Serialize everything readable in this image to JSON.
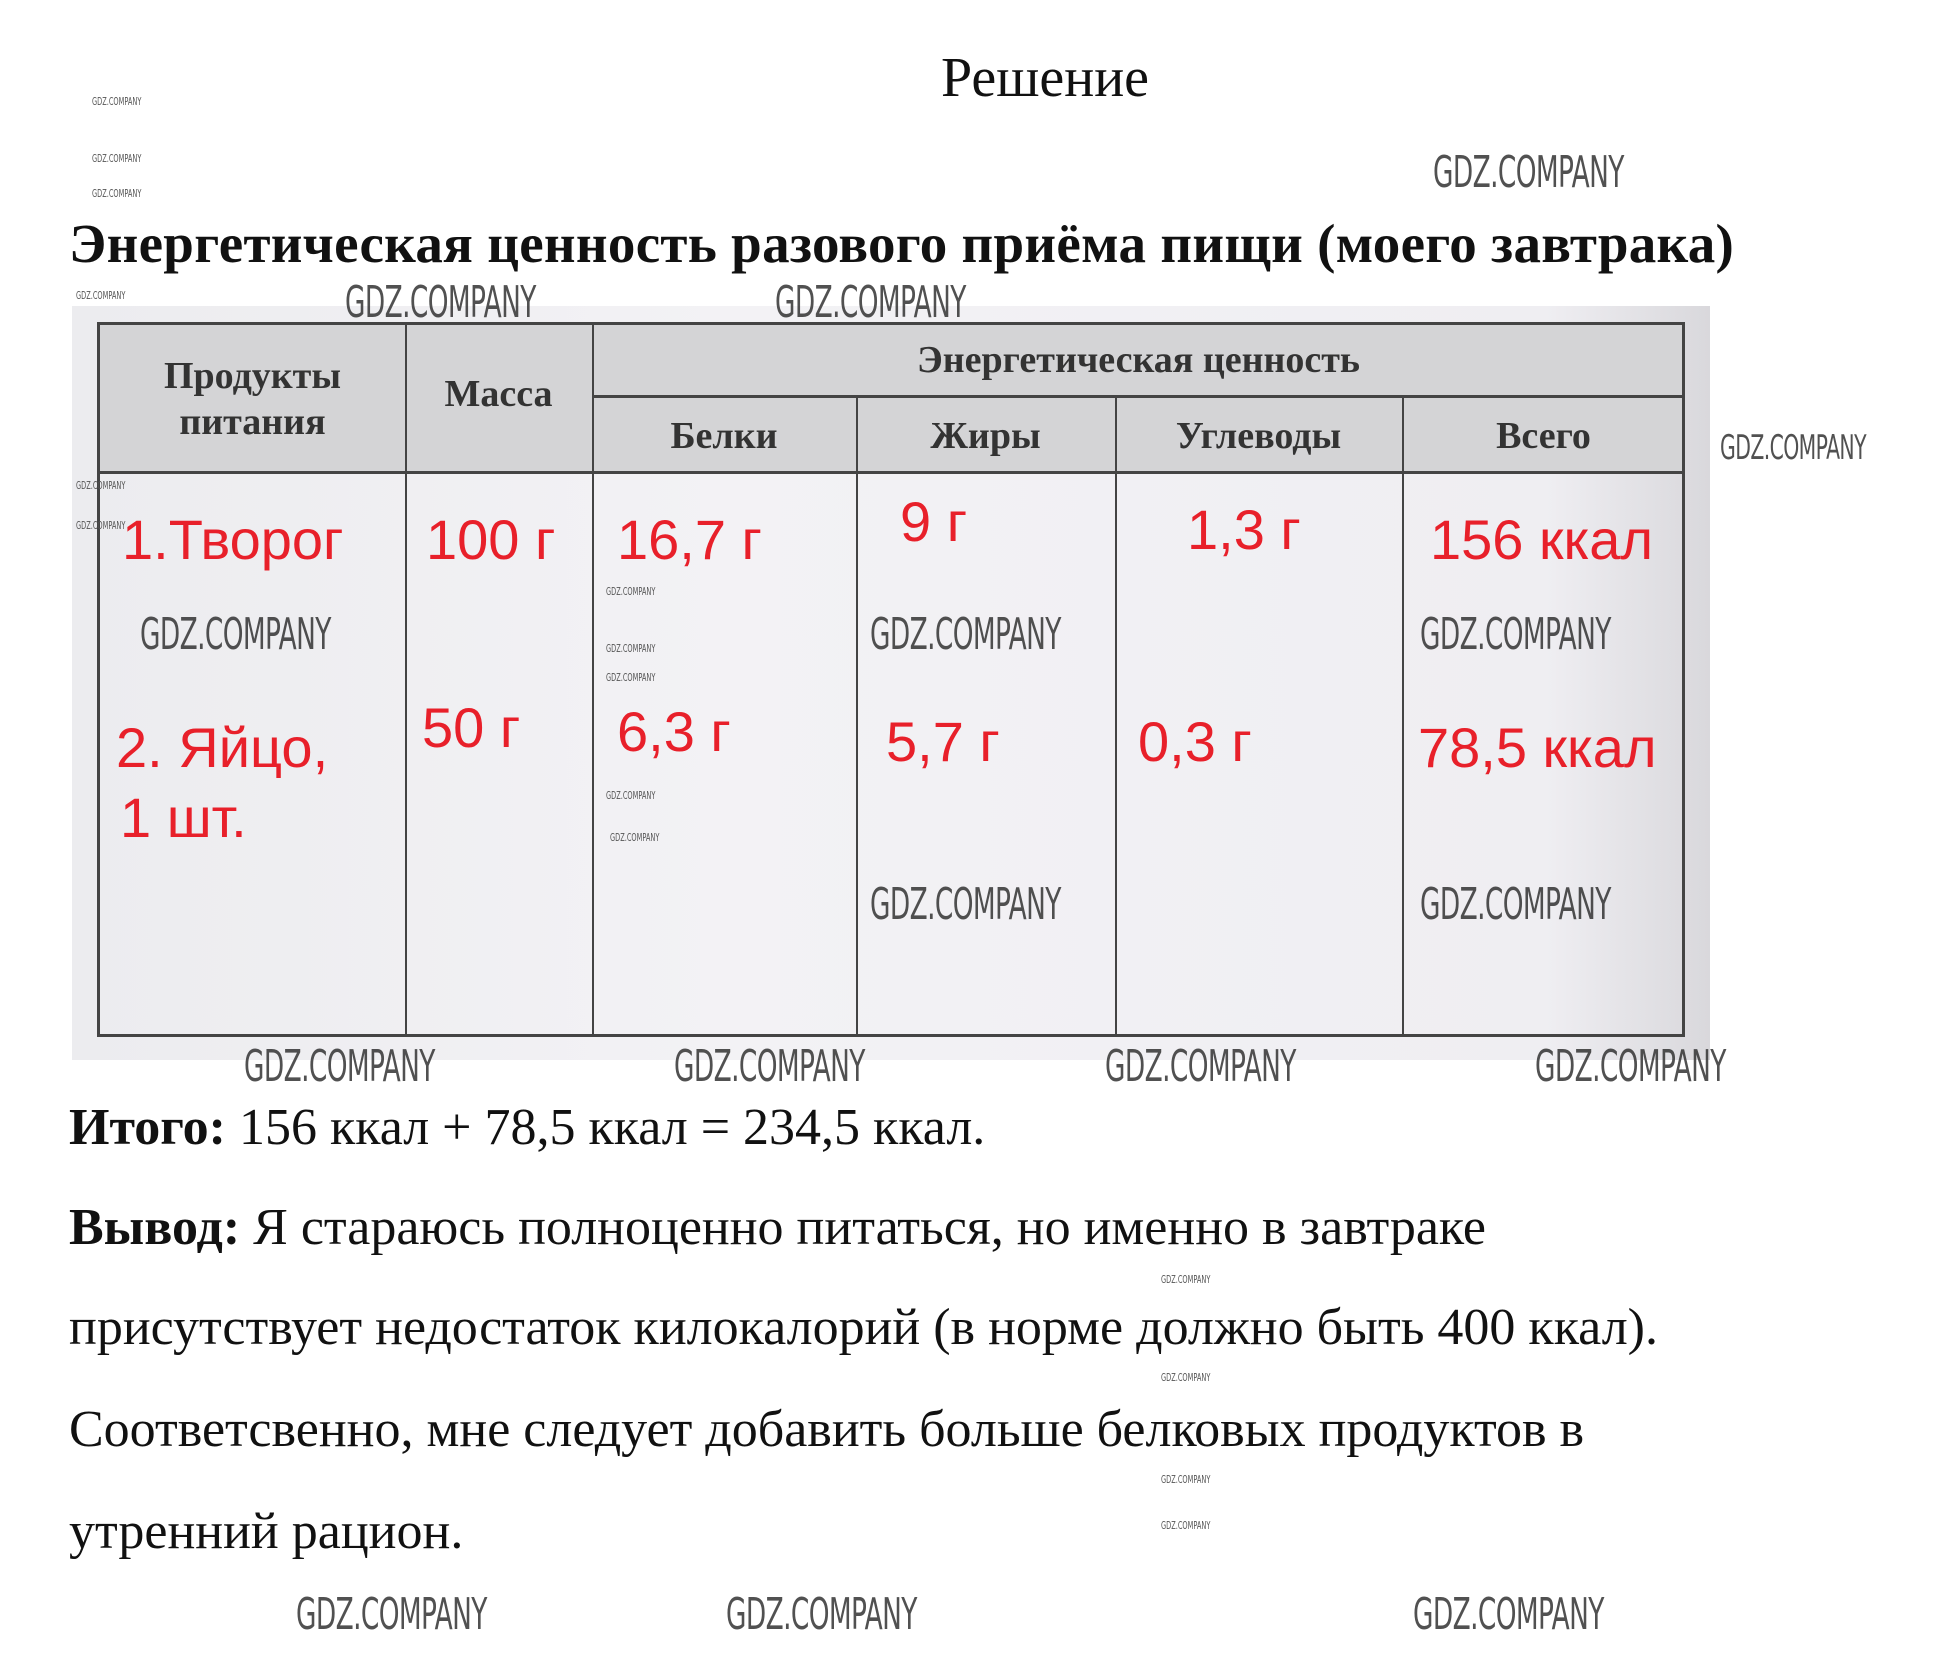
{
  "title": "Решение",
  "heading": "Энергетическая ценность разового приёма пищи (моего завтрака)",
  "table": {
    "headers": {
      "products": "Продукты питания",
      "mass": "Масса",
      "energy": "Энергетическая ценность",
      "proteins": "Белки",
      "fats": "Жиры",
      "carbs": "Углеводы",
      "total": "Всего"
    },
    "rows": [
      {
        "product": "1.Творог",
        "product2": "",
        "mass": "100 г",
        "proteins": "16,7 г",
        "fats": "9 г",
        "carbs": "1,3 г",
        "total": "156 ккал"
      },
      {
        "product": "2. Яйцо,",
        "product2": "1 шт.",
        "mass": "50 г",
        "proteins": "6,3 г",
        "fats": "5,7 г",
        "carbs": "0,3 г",
        "total": "78,5 ккал"
      }
    ],
    "handwriting_color": "#e8202a"
  },
  "summary": {
    "label": "Итого:",
    "text": " 156 ккал + 78,5 ккал = 234,5 ккал."
  },
  "conclusion": {
    "label": "Вывод:",
    "line1": " Я стараюсь полноценно питаться, но именно в завтраке",
    "line2": "присутствует недостаток килокалорий (в норме должно быть 400 ккал).",
    "line3": "Соответсвенно, мне следует добавить больше белковых продуктов в",
    "line4": "утренний рацион."
  },
  "watermark": "GDZ.COMPANY"
}
